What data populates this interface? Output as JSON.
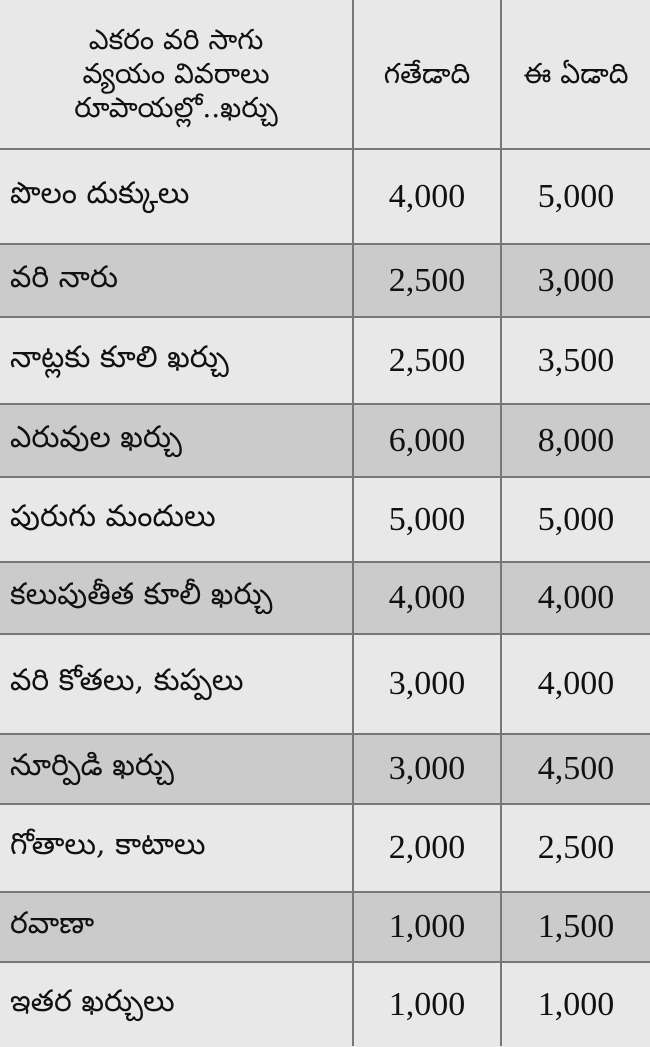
{
  "header": {
    "item_col": [
      "ఎకరం వరి సాగు",
      "వ్యయం వివరాలు",
      "రూపాయల్లో..ఖర్చు"
    ],
    "last_year": "గతేడాది",
    "this_year": "ఈ ఏడాది"
  },
  "rows": [
    {
      "item": "పొలం దుక్కులు",
      "last_year": "4,000",
      "this_year": "5,000"
    },
    {
      "item": "వరి నారు",
      "last_year": "2,500",
      "this_year": "3,000"
    },
    {
      "item": "నాట్లకు కూలి ఖర్చు",
      "last_year": "2,500",
      "this_year": "3,500"
    },
    {
      "item": "ఎరువుల ఖర్చు",
      "last_year": "6,000",
      "this_year": "8,000"
    },
    {
      "item": "పురుగు మందులు",
      "last_year": "5,000",
      "this_year": "5,000"
    },
    {
      "item": "కలుపుతీత కూలీ ఖర్చు",
      "last_year": "4,000",
      "this_year": "4,000"
    },
    {
      "item": "వరి కోతలు, కుప్పలు",
      "last_year": "3,000",
      "this_year": "4,000"
    },
    {
      "item": "నూర్పిడి ఖర్చు",
      "last_year": "3,000",
      "this_year": "4,500"
    },
    {
      "item": "గోతాలు,  కాటాలు",
      "last_year": "2,000",
      "this_year": "2,500"
    },
    {
      "item": "రవాణా",
      "last_year": "1,000",
      "this_year": "1,500"
    },
    {
      "item": "ఇతర ఖర్చులు",
      "last_year": "1,000",
      "this_year": "1,000"
    }
  ],
  "colors": {
    "row_light": "#e8e8e8",
    "row_dark": "#cbcbcb",
    "grid": "#777777"
  }
}
